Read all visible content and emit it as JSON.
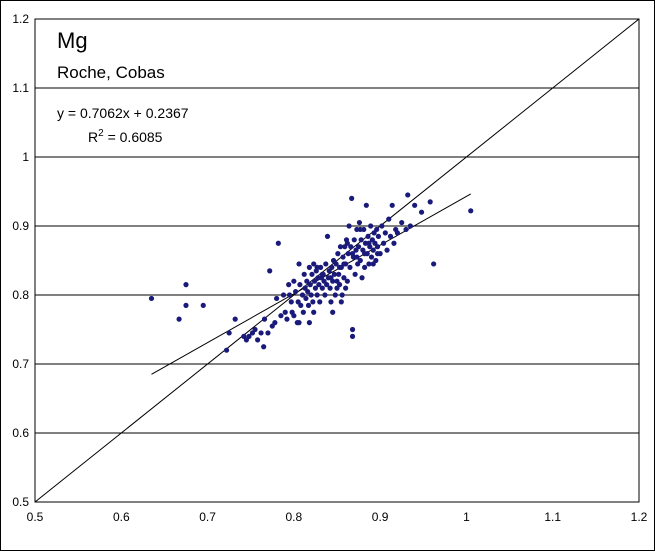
{
  "chart_data": {
    "type": "scatter",
    "title": "Mg",
    "subtitle": "Roche, Cobas",
    "equation": "y = 0.7062x + 0.2367",
    "r2_prefix": "R",
    "r2_sup": "2",
    "r2_value": " = 0.6085",
    "xlim": [
      0.5,
      1.2
    ],
    "ylim": [
      0.5,
      1.2
    ],
    "x_ticks": [
      "0.5",
      "0.6",
      "0.7",
      "0.8",
      "0.9",
      "1",
      "1.1",
      "1.2"
    ],
    "y_ticks": [
      "0.5",
      "0.6",
      "0.7",
      "0.8",
      "0.9",
      "1",
      "1.1",
      "1.2"
    ],
    "grid": "horizontal",
    "regression": {
      "slope": 0.7062,
      "intercept": 0.2367,
      "x_range": [
        0.635,
        1.005
      ]
    },
    "identity_line": {
      "x_range": [
        0.5,
        1.2
      ]
    },
    "colors": {
      "points": "#1a1a7a",
      "lines": "#000000",
      "grid": "#000000"
    },
    "points": [
      [
        0.635,
        0.795
      ],
      [
        0.667,
        0.765
      ],
      [
        0.675,
        0.815
      ],
      [
        0.675,
        0.785
      ],
      [
        0.695,
        0.785
      ],
      [
        0.722,
        0.72
      ],
      [
        0.725,
        0.745
      ],
      [
        0.732,
        0.765
      ],
      [
        0.742,
        0.74
      ],
      [
        0.745,
        0.735
      ],
      [
        0.748,
        0.74
      ],
      [
        0.752,
        0.745
      ],
      [
        0.755,
        0.75
      ],
      [
        0.758,
        0.735
      ],
      [
        0.762,
        0.745
      ],
      [
        0.765,
        0.725
      ],
      [
        0.766,
        0.765
      ],
      [
        0.77,
        0.745
      ],
      [
        0.772,
        0.835
      ],
      [
        0.775,
        0.755
      ],
      [
        0.778,
        0.76
      ],
      [
        0.78,
        0.795
      ],
      [
        0.782,
        0.875
      ],
      [
        0.785,
        0.77
      ],
      [
        0.788,
        0.8
      ],
      [
        0.79,
        0.775
      ],
      [
        0.792,
        0.765
      ],
      [
        0.794,
        0.815
      ],
      [
        0.795,
        0.8
      ],
      [
        0.797,
        0.79
      ],
      [
        0.798,
        0.775
      ],
      [
        0.8,
        0.82
      ],
      [
        0.8,
        0.77
      ],
      [
        0.802,
        0.805
      ],
      [
        0.804,
        0.76
      ],
      [
        0.805,
        0.79
      ],
      [
        0.806,
        0.845
      ],
      [
        0.807,
        0.815
      ],
      [
        0.808,
        0.785
      ],
      [
        0.81,
        0.8
      ],
      [
        0.811,
        0.775
      ],
      [
        0.812,
        0.83
      ],
      [
        0.813,
        0.81
      ],
      [
        0.814,
        0.795
      ],
      [
        0.815,
        0.82
      ],
      [
        0.816,
        0.805
      ],
      [
        0.817,
        0.785
      ],
      [
        0.818,
        0.84
      ],
      [
        0.819,
        0.815
      ],
      [
        0.82,
        0.8
      ],
      [
        0.821,
        0.83
      ],
      [
        0.822,
        0.79
      ],
      [
        0.823,
        0.845
      ],
      [
        0.824,
        0.82
      ],
      [
        0.825,
        0.81
      ],
      [
        0.826,
        0.835
      ],
      [
        0.827,
        0.8
      ],
      [
        0.828,
        0.825
      ],
      [
        0.829,
        0.815
      ],
      [
        0.83,
        0.79
      ],
      [
        0.831,
        0.84
      ],
      [
        0.832,
        0.825
      ],
      [
        0.833,
        0.81
      ],
      [
        0.834,
        0.83
      ],
      [
        0.835,
        0.82
      ],
      [
        0.836,
        0.8
      ],
      [
        0.837,
        0.845
      ],
      [
        0.838,
        0.815
      ],
      [
        0.839,
        0.885
      ],
      [
        0.84,
        0.825
      ],
      [
        0.841,
        0.835
      ],
      [
        0.842,
        0.81
      ],
      [
        0.843,
        0.79
      ],
      [
        0.844,
        0.84
      ],
      [
        0.845,
        0.82
      ],
      [
        0.846,
        0.85
      ],
      [
        0.847,
        0.83
      ],
      [
        0.848,
        0.8
      ],
      [
        0.849,
        0.845
      ],
      [
        0.85,
        0.82
      ],
      [
        0.851,
        0.86
      ],
      [
        0.852,
        0.83
      ],
      [
        0.853,
        0.815
      ],
      [
        0.854,
        0.87
      ],
      [
        0.855,
        0.84
      ],
      [
        0.856,
        0.8
      ],
      [
        0.857,
        0.855
      ],
      [
        0.858,
        0.825
      ],
      [
        0.859,
        0.87
      ],
      [
        0.86,
        0.845
      ],
      [
        0.861,
        0.88
      ],
      [
        0.862,
        0.82
      ],
      [
        0.863,
        0.86
      ],
      [
        0.864,
        0.9
      ],
      [
        0.865,
        0.84
      ],
      [
        0.866,
        0.87
      ],
      [
        0.867,
        0.94
      ],
      [
        0.868,
        0.75
      ],
      [
        0.868,
        0.74
      ],
      [
        0.869,
        0.855
      ],
      [
        0.87,
        0.88
      ],
      [
        0.871,
        0.83
      ],
      [
        0.872,
        0.865
      ],
      [
        0.873,
        0.895
      ],
      [
        0.874,
        0.845
      ],
      [
        0.875,
        0.87
      ],
      [
        0.876,
        0.905
      ],
      [
        0.877,
        0.85
      ],
      [
        0.878,
        0.88
      ],
      [
        0.879,
        0.825
      ],
      [
        0.88,
        0.865
      ],
      [
        0.881,
        0.895
      ],
      [
        0.882,
        0.84
      ],
      [
        0.883,
        0.875
      ],
      [
        0.884,
        0.93
      ],
      [
        0.885,
        0.86
      ],
      [
        0.886,
        0.885
      ],
      [
        0.887,
        0.845
      ],
      [
        0.888,
        0.87
      ],
      [
        0.889,
        0.9
      ],
      [
        0.89,
        0.855
      ],
      [
        0.891,
        0.88
      ],
      [
        0.892,
        0.865
      ],
      [
        0.893,
        0.89
      ],
      [
        0.894,
        0.875
      ],
      [
        0.895,
        0.85
      ],
      [
        0.896,
        0.895
      ],
      [
        0.897,
        0.87
      ],
      [
        0.898,
        0.885
      ],
      [
        0.9,
        0.86
      ],
      [
        0.902,
        0.9
      ],
      [
        0.904,
        0.875
      ],
      [
        0.906,
        0.89
      ],
      [
        0.908,
        0.865
      ],
      [
        0.91,
        0.91
      ],
      [
        0.912,
        0.885
      ],
      [
        0.914,
        0.93
      ],
      [
        0.916,
        0.875
      ],
      [
        0.918,
        0.895
      ],
      [
        0.92,
        0.89
      ],
      [
        0.925,
        0.905
      ],
      [
        0.93,
        0.895
      ],
      [
        0.932,
        0.945
      ],
      [
        0.935,
        0.9
      ],
      [
        0.94,
        0.93
      ],
      [
        0.948,
        0.92
      ],
      [
        0.958,
        0.935
      ],
      [
        0.962,
        0.845
      ],
      [
        1.005,
        0.922
      ],
      [
        0.827,
        0.84
      ],
      [
        0.833,
        0.83
      ],
      [
        0.843,
        0.825
      ],
      [
        0.853,
        0.84
      ],
      [
        0.858,
        0.845
      ],
      [
        0.862,
        0.875
      ],
      [
        0.868,
        0.86
      ],
      [
        0.873,
        0.855
      ],
      [
        0.877,
        0.895
      ],
      [
        0.882,
        0.86
      ],
      [
        0.887,
        0.875
      ],
      [
        0.892,
        0.845
      ],
      [
        0.897,
        0.86
      ],
      [
        0.845,
        0.775
      ],
      [
        0.85,
        0.81
      ],
      [
        0.855,
        0.79
      ],
      [
        0.86,
        0.81
      ],
      [
        0.818,
        0.76
      ],
      [
        0.823,
        0.775
      ],
      [
        0.806,
        0.76
      ]
    ]
  }
}
